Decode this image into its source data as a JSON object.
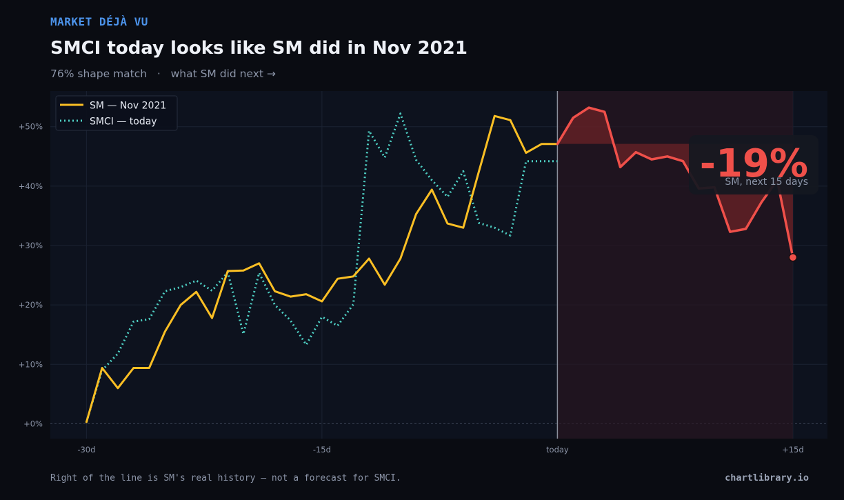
{
  "header": {
    "kicker": "MARKET DÉJÀ VU",
    "title": "SMCI today looks like SM did in Nov 2021",
    "subtitle": "76% shape match   ·   what SM did next →"
  },
  "callout": {
    "value": "-19%",
    "label": "SM, next 15 days"
  },
  "footer": {
    "note": "Right of the line is SM's real history — not a forecast for SMCI.",
    "brand": "chartlibrary.io"
  },
  "colors": {
    "sm": "#fbbf24",
    "smci": "#4fd1c5",
    "forward": "#f0504a",
    "kicker": "#4c93ea"
  },
  "chart_data": {
    "type": "line",
    "xlim": [
      -32.3,
      17.2
    ],
    "ylim": [
      -2.5,
      56
    ],
    "x_ticks": [
      {
        "value": -30,
        "label": "-30d"
      },
      {
        "value": -15,
        "label": "-15d"
      },
      {
        "value": 0,
        "label": "today"
      },
      {
        "value": 15,
        "label": "+15d"
      }
    ],
    "y_ticks": [
      {
        "value": 0,
        "label": "+0%"
      },
      {
        "value": 10,
        "label": "+10%"
      },
      {
        "value": 20,
        "label": "+20%"
      },
      {
        "value": 30,
        "label": "+30%"
      },
      {
        "value": 40,
        "label": "+40%"
      },
      {
        "value": 50,
        "label": "+50%"
      }
    ],
    "legend_position": "top-left",
    "series": [
      {
        "name": "SM — Nov 2021",
        "style": "solid",
        "x": [
          -30,
          -29,
          -28,
          -27,
          -26,
          -25,
          -24,
          -23,
          -22,
          -21,
          -20,
          -19,
          -18,
          -17,
          -16,
          -15,
          -14,
          -13,
          -12,
          -11,
          -10,
          -9,
          -8,
          -7,
          -6,
          -5,
          -4,
          -3,
          -2,
          -1,
          0
        ],
        "values": [
          0.3,
          9.4,
          6.0,
          9.4,
          9.4,
          15.5,
          20.0,
          22.2,
          17.8,
          25.7,
          25.8,
          27.0,
          22.3,
          21.4,
          21.8,
          20.6,
          24.4,
          24.8,
          27.8,
          23.4,
          27.8,
          35.3,
          39.4,
          33.7,
          33.0,
          42.5,
          51.8,
          51.1,
          45.6,
          47.1,
          47.1
        ]
      },
      {
        "name": "SMCI — today",
        "style": "dotted",
        "x": [
          -30,
          -29,
          -28,
          -27,
          -26,
          -25,
          -24,
          -23,
          -22,
          -21,
          -20,
          -19,
          -18,
          -17,
          -16,
          -15,
          -14,
          -13,
          -12,
          -11,
          -10,
          -9,
          -8,
          -7,
          -6,
          -5,
          -4,
          -3,
          -2,
          -1,
          0
        ],
        "values": [
          0.3,
          9.0,
          11.8,
          17.2,
          17.6,
          22.3,
          23.0,
          24.1,
          22.4,
          25.5,
          15.1,
          25.4,
          20.0,
          17.4,
          13.3,
          18.0,
          16.5,
          20.1,
          49.3,
          44.8,
          52.2,
          44.4,
          41.0,
          38.2,
          42.5,
          33.8,
          33.0,
          31.7,
          44.2,
          44.2,
          44.2
        ]
      },
      {
        "name": "SM — next 15 days",
        "style": "solid",
        "x": [
          0,
          1,
          2,
          3,
          4,
          5,
          6,
          7,
          8,
          9,
          10,
          11,
          12,
          13,
          14,
          15
        ],
        "values": [
          47.1,
          51.5,
          53.2,
          52.5,
          43.2,
          45.7,
          44.5,
          45.0,
          44.2,
          39.6,
          39.8,
          32.3,
          32.8,
          37.3,
          41.0,
          28.0
        ]
      }
    ],
    "forward_window": [
      0,
      15
    ],
    "baseline": 47.1,
    "end_point": {
      "x": 15,
      "y": 28.0
    }
  }
}
